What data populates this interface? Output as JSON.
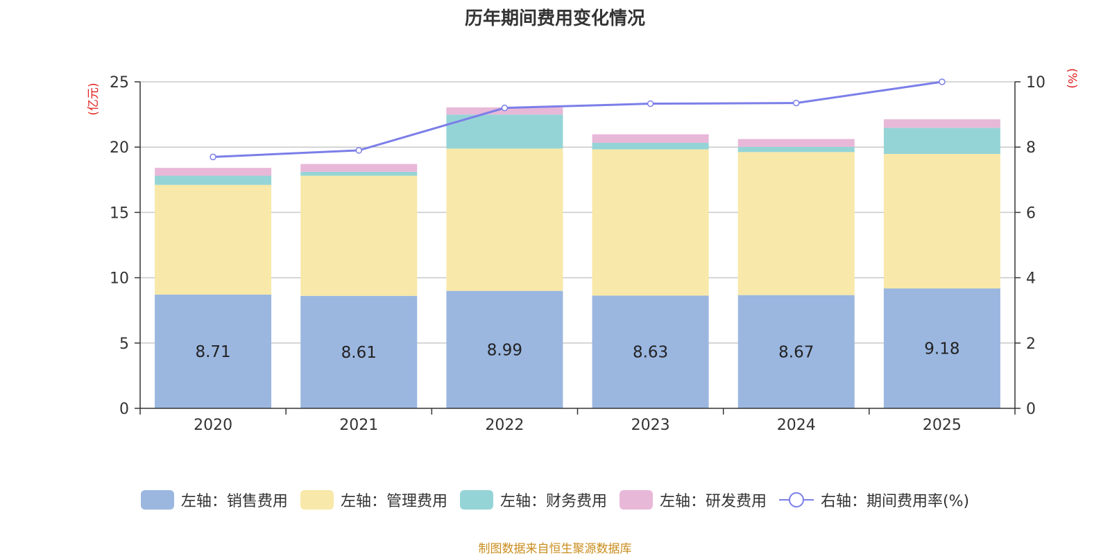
{
  "chart_data": {
    "type": "bar",
    "title": "历年期间费用变化情况",
    "categories": [
      "2020",
      "2021",
      "2022",
      "2023",
      "2024",
      "2025"
    ],
    "left_axis": {
      "label": "(亿元)",
      "ylim": [
        0,
        25
      ],
      "ticks": [
        "0",
        "5",
        "10",
        "15",
        "20",
        "25"
      ]
    },
    "right_axis": {
      "label": "(%)",
      "ylim": [
        0,
        10
      ],
      "ticks": [
        "0",
        "2",
        "4",
        "6",
        "8",
        "10"
      ]
    },
    "series": [
      {
        "name": "左轴：销售费用",
        "type": "bar",
        "stack": "left",
        "color": "#9bb7e0",
        "values": [
          8.71,
          8.61,
          8.99,
          8.63,
          8.67,
          9.18
        ],
        "labels": [
          "8.71",
          "8.61",
          "8.99",
          "8.63",
          "8.67",
          "9.18"
        ]
      },
      {
        "name": "左轴：管理费用",
        "type": "bar",
        "stack": "left",
        "color": "#f8e8a9",
        "values": [
          8.4,
          9.2,
          10.9,
          11.2,
          10.95,
          10.3
        ]
      },
      {
        "name": "左轴：财务费用",
        "type": "bar",
        "stack": "left",
        "color": "#95d4d6",
        "values": [
          0.7,
          0.3,
          2.6,
          0.5,
          0.4,
          2.0
        ]
      },
      {
        "name": "左轴：研发费用",
        "type": "bar",
        "stack": "left",
        "color": "#e8b8d8",
        "values": [
          0.6,
          0.6,
          0.55,
          0.65,
          0.6,
          0.65
        ]
      },
      {
        "name": "右轴：期间费用率(%)",
        "type": "line",
        "axis": "right",
        "color": "#7b7ee8",
        "values": [
          7.7,
          7.9,
          9.2,
          9.33,
          9.35,
          10.0
        ]
      }
    ],
    "legend_position": "bottom",
    "grid": true
  },
  "source": "制图数据来自恒生聚源数据库"
}
